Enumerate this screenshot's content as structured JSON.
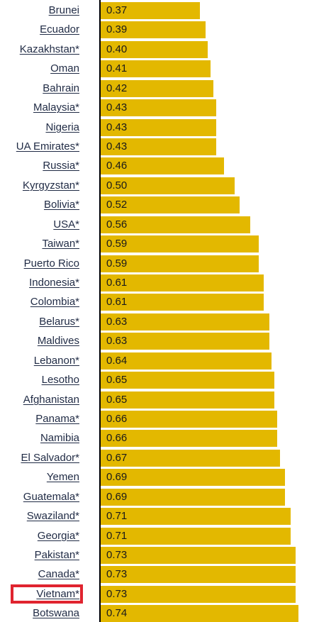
{
  "colors": {
    "bar": "#e3b800",
    "axis": "#000000",
    "highlight": "#e0242f",
    "label_text": "#1f2a44"
  },
  "chart_data": {
    "type": "bar",
    "orientation": "horizontal",
    "title": "",
    "xlabel": "",
    "ylabel": "",
    "xlim": [
      0,
      0.75
    ],
    "grid": false,
    "highlighted_category": "Vietnam*",
    "categories": [
      "Brunei",
      "Ecuador",
      "Kazakhstan*",
      "Oman",
      "Bahrain",
      "Malaysia*",
      "Nigeria",
      "UA Emirates*",
      "Russia*",
      "Kyrgyzstan*",
      "Bolivia*",
      "USA*",
      "Taiwan*",
      "Puerto Rico",
      "Indonesia*",
      "Colombia*",
      "Belarus*",
      "Maldives",
      "Lebanon*",
      "Lesotho",
      "Afghanistan",
      "Panama*",
      "Namibia",
      "El Salvador*",
      "Yemen",
      "Guatemala*",
      "Swaziland*",
      "Georgia*",
      "Pakistan*",
      "Canada*",
      "Vietnam*",
      "Botswana"
    ],
    "values": [
      0.37,
      0.39,
      0.4,
      0.41,
      0.42,
      0.43,
      0.43,
      0.43,
      0.46,
      0.5,
      0.52,
      0.56,
      0.59,
      0.59,
      0.61,
      0.61,
      0.63,
      0.63,
      0.64,
      0.65,
      0.65,
      0.66,
      0.66,
      0.67,
      0.69,
      0.69,
      0.71,
      0.71,
      0.73,
      0.73,
      0.73,
      0.74
    ],
    "value_labels": [
      "0.37",
      "0.39",
      "0.40",
      "0.41",
      "0.42",
      "0.43",
      "0.43",
      "0.43",
      "0.46",
      "0.50",
      "0.52",
      "0.56",
      "0.59",
      "0.59",
      "0.61",
      "0.61",
      "0.63",
      "0.63",
      "0.64",
      "0.65",
      "0.65",
      "0.66",
      "0.66",
      "0.67",
      "0.69",
      "0.69",
      "0.71",
      "0.71",
      "0.73",
      "0.73",
      "0.73",
      "0.74"
    ]
  }
}
